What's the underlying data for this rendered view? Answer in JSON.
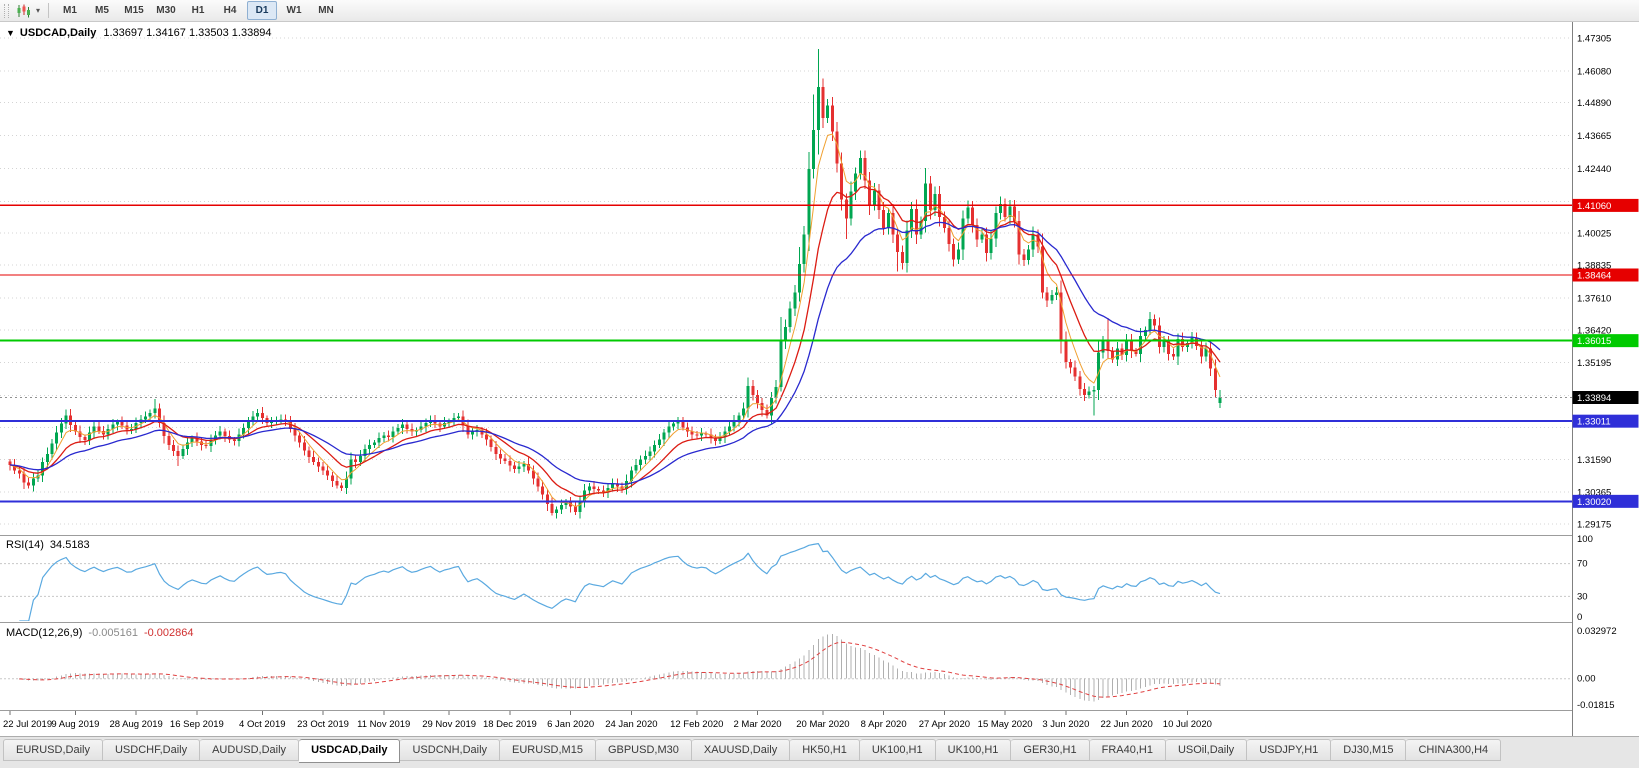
{
  "toolbar": {
    "timeframes": [
      "M1",
      "M5",
      "M15",
      "M30",
      "H1",
      "H4",
      "D1",
      "W1",
      "MN"
    ],
    "active_timeframe": "D1"
  },
  "chart": {
    "symbol_title": "USDCAD,Daily",
    "ohlc_text": "1.33697 1.34167 1.33503 1.33894"
  },
  "rsi": {
    "name": "RSI(14)",
    "value": "34.5183",
    "period": 14,
    "line_color": "#5aa9e0",
    "axis_labels": [
      {
        "v": 100,
        "text": "100"
      },
      {
        "v": 70,
        "text": "70"
      },
      {
        "v": 30,
        "text": "30"
      },
      {
        "v": 0,
        "text": "0"
      }
    ]
  },
  "macd": {
    "name": "MACD(12,26,9)",
    "value_main": "-0.005161",
    "value_signal": "-0.002864",
    "fast": 12,
    "slow": 26,
    "signal": 9,
    "hist_color": "#b0b0b0",
    "signal_color": "#e04040",
    "axis_labels": [
      {
        "v": 0.032972,
        "text": "0.032972"
      },
      {
        "v": 0,
        "text": "0.00"
      },
      {
        "v": -0.01815,
        "text": "-0.01815"
      }
    ]
  },
  "tabs": {
    "items": [
      "EURUSD,Daily",
      "USDCHF,Daily",
      "AUDUSD,Daily",
      "USDCAD,Daily",
      "USDCNH,Daily",
      "EURUSD,M15",
      "GBPUSD,M30",
      "XAUUSD,Daily",
      "HK50,H1",
      "UK100,H1",
      "UK100,H1",
      "GER30,H1",
      "FRA40,H1",
      "USOil,Daily",
      "USDJPY,H1",
      "DJ30,M15",
      "CHINA300,H4"
    ],
    "active_index": 3
  },
  "chart_data": {
    "type": "candlestick",
    "symbol": "USDCAD",
    "timeframe": "Daily",
    "price_range_shown": [
      1.29175,
      1.47305
    ],
    "up_color": "#00a651",
    "down_color": "#e53030",
    "first_open": 1.315,
    "closes": [
      1.3138,
      1.3118,
      1.3105,
      1.3072,
      1.3062,
      1.3088,
      1.3098,
      1.3148,
      1.3178,
      1.3218,
      1.3258,
      1.3292,
      1.3322,
      1.3286,
      1.3262,
      1.3242,
      1.323,
      1.3258,
      1.3282,
      1.3265,
      1.3252,
      1.3272,
      1.3288,
      1.3298,
      1.3285,
      1.327,
      1.3272,
      1.3295,
      1.3308,
      1.3318,
      1.3332,
      1.3348,
      1.3295,
      1.3245,
      1.3212,
      1.319,
      1.3172,
      1.3198,
      1.3222,
      1.3238,
      1.3225,
      1.3212,
      1.3208,
      1.3232,
      1.3248,
      1.3262,
      1.3245,
      1.3232,
      1.3228,
      1.3252,
      1.3275,
      1.3298,
      1.3318,
      1.3332,
      1.3312,
      1.3295,
      1.3298,
      1.3305,
      1.3308,
      1.3302,
      1.3272,
      1.3248,
      1.3222,
      1.3192,
      1.3168,
      1.3148,
      1.3132,
      1.3118,
      1.3098,
      1.3078,
      1.3062,
      1.3052,
      1.3088,
      1.3158,
      1.3148,
      1.3172,
      1.3198,
      1.3212,
      1.3222,
      1.3238,
      1.3248,
      1.3242,
      1.3262,
      1.3275,
      1.3288,
      1.3272,
      1.3262,
      1.3268,
      1.3282,
      1.3295,
      1.3305,
      1.3292,
      1.3282,
      1.3295,
      1.3302,
      1.3312,
      1.3318,
      1.3285,
      1.3252,
      1.3262,
      1.3268,
      1.3252,
      1.3232,
      1.3205,
      1.3178,
      1.3162,
      1.3152,
      1.3135,
      1.3122,
      1.3132,
      1.3142,
      1.3118,
      1.3088,
      1.3058,
      1.3028,
      1.2992,
      1.2958,
      1.2972,
      1.2988,
      1.2998,
      1.2982,
      1.2962,
      1.3002,
      1.3042,
      1.3058,
      1.3048,
      1.3042,
      1.3035,
      1.3052,
      1.3068,
      1.3058,
      1.3048,
      1.3078,
      1.3118,
      1.3138,
      1.3158,
      1.3172,
      1.3188,
      1.3212,
      1.3232,
      1.3258,
      1.3282,
      1.3292,
      1.3298,
      1.3278,
      1.3262,
      1.3252,
      1.3248,
      1.3255,
      1.3252,
      1.3238,
      1.3228,
      1.3242,
      1.3262,
      1.3282,
      1.3302,
      1.3322,
      1.3348,
      1.3432,
      1.3398,
      1.3368,
      1.3342,
      1.3322,
      1.3388,
      1.3428,
      1.3598,
      1.3652,
      1.3722,
      1.3782,
      1.3888,
      1.3998,
      1.4242,
      1.4388,
      1.4548,
      1.4432,
      1.4478,
      1.4382,
      1.4262,
      1.4128,
      1.4058,
      1.4158,
      1.4225,
      1.4282,
      1.4198,
      1.4105,
      1.4162,
      1.4088,
      1.4022,
      1.4078,
      1.3998,
      1.3932,
      1.3892,
      1.4012,
      1.4092,
      1.3998,
      1.4048,
      1.4188,
      1.4088,
      1.4148,
      1.4062,
      1.4022,
      1.3962,
      1.3905,
      1.3942,
      1.4058,
      1.4098,
      1.4032,
      1.3978,
      1.3998,
      1.3928,
      1.3982,
      1.4078,
      1.4112,
      1.4062,
      1.4102,
      1.4048,
      1.3922,
      1.3902,
      1.3942,
      1.3998,
      1.3952,
      1.3782,
      1.3752,
      1.3772,
      1.3782,
      1.3602,
      1.3522,
      1.3502,
      1.3468,
      1.3422,
      1.3398,
      1.3412,
      1.3418,
      1.3558,
      1.3602,
      1.3562,
      1.3532,
      1.3572,
      1.3548,
      1.3602,
      1.3562,
      1.3552,
      1.3618,
      1.3642,
      1.3682,
      1.3658,
      1.3578,
      1.3598,
      1.3552,
      1.3542,
      1.3608,
      1.3578,
      1.3592,
      1.3612,
      1.3582,
      1.3542,
      1.3572,
      1.3498,
      1.3418,
      1.33894
    ],
    "wick_overrides": {
      "12": [
        1.3345,
        null
      ],
      "31": [
        1.3383,
        null
      ],
      "36": [
        null,
        1.3134
      ],
      "71": [
        null,
        1.304
      ],
      "116": [
        null,
        1.295
      ],
      "121": [
        null,
        1.2952
      ],
      "158": [
        1.3464,
        null
      ],
      "165": [
        1.369,
        1.3412
      ],
      "169": [
        1.395,
        null
      ],
      "171": [
        1.4305,
        null
      ],
      "172": [
        1.452,
        null
      ],
      "173": [
        1.469,
        1.4295
      ],
      "179": [
        null,
        1.398
      ],
      "190": [
        null,
        1.386
      ],
      "196": [
        1.4245,
        null
      ],
      "212": [
        1.414,
        null
      ],
      "221": [
        null,
        1.3758
      ],
      "232": [
        null,
        1.3322
      ],
      "235": [
        1.3686,
        null
      ],
      "258": [
        null,
        1.339
      ]
    },
    "last_ohlc": [
      1.33697,
      1.34167,
      1.33503,
      1.33894
    ],
    "price_axis_labels": [
      {
        "text": "1.47305",
        "price": 1.47305
      },
      {
        "text": "1.46080",
        "price": 1.4608
      },
      {
        "text": "1.44890",
        "price": 1.4489
      },
      {
        "text": "1.43665",
        "price": 1.43665
      },
      {
        "text": "1.42440",
        "price": 1.4244
      },
      {
        "text": "1.40025",
        "price": 1.40025
      },
      {
        "text": "1.38835",
        "price": 1.38835
      },
      {
        "text": "1.37610",
        "price": 1.3761
      },
      {
        "text": "1.36420",
        "price": 1.3642
      },
      {
        "text": "1.35195",
        "price": 1.35195
      },
      {
        "text": "1.31590",
        "price": 1.3159
      },
      {
        "text": "1.30365",
        "price": 1.30365
      },
      {
        "text": "1.29175",
        "price": 1.29175
      }
    ],
    "hidden_grid_prices": [
      1.41215,
      1.3397,
      1.3278
    ],
    "levels": [
      {
        "label": "1.41060",
        "price": 1.4106,
        "color": "#e60000",
        "width": 1.4
      },
      {
        "label": "1.38464",
        "price": 1.38464,
        "color": "#e60000",
        "width": 1.4
      },
      {
        "label": "1.36015",
        "price": 1.36015,
        "color": "#00ca00",
        "width": 2
      },
      {
        "label": "1.33011",
        "price": 1.33011,
        "color": "#2f2fd8",
        "width": 2
      },
      {
        "label": "1.30020",
        "price": 1.3002,
        "color": "#2f2fd8",
        "width": 2
      }
    ],
    "current_price": {
      "label": "1.33894",
      "price": 1.33894,
      "badge_bg": "#000000",
      "line_color": "#909090"
    },
    "date_labels": [
      {
        "text": "22 Jul 2019",
        "i": 0
      },
      {
        "text": "9 Aug 2019",
        "i": 14
      },
      {
        "text": "28 Aug 2019",
        "i": 27
      },
      {
        "text": "16 Sep 2019",
        "i": 40
      },
      {
        "text": "4 Oct 2019",
        "i": 54
      },
      {
        "text": "23 Oct 2019",
        "i": 67
      },
      {
        "text": "11 Nov 2019",
        "i": 80
      },
      {
        "text": "29 Nov 2019",
        "i": 94
      },
      {
        "text": "18 Dec 2019",
        "i": 107
      },
      {
        "text": "6 Jan 2020",
        "i": 120
      },
      {
        "text": "24 Jan 2020",
        "i": 133
      },
      {
        "text": "12 Feb 2020",
        "i": 147
      },
      {
        "text": "2 Mar 2020",
        "i": 160
      },
      {
        "text": "20 Mar 2020",
        "i": 174
      },
      {
        "text": "8 Apr 2020",
        "i": 187
      },
      {
        "text": "27 Apr 2020",
        "i": 200
      },
      {
        "text": "15 May 2020",
        "i": 213
      },
      {
        "text": "3 Jun 2020",
        "i": 226
      },
      {
        "text": "22 Jun 2020",
        "i": 239
      },
      {
        "text": "10 Jul 2020",
        "i": 252
      }
    ],
    "overlays": [
      {
        "type": "ema",
        "period": 5,
        "color": "#f0a030"
      },
      {
        "type": "ema",
        "period": 12,
        "color": "#dc1c13"
      },
      {
        "type": "ema",
        "period": 25,
        "color": "#2929cf"
      }
    ]
  }
}
